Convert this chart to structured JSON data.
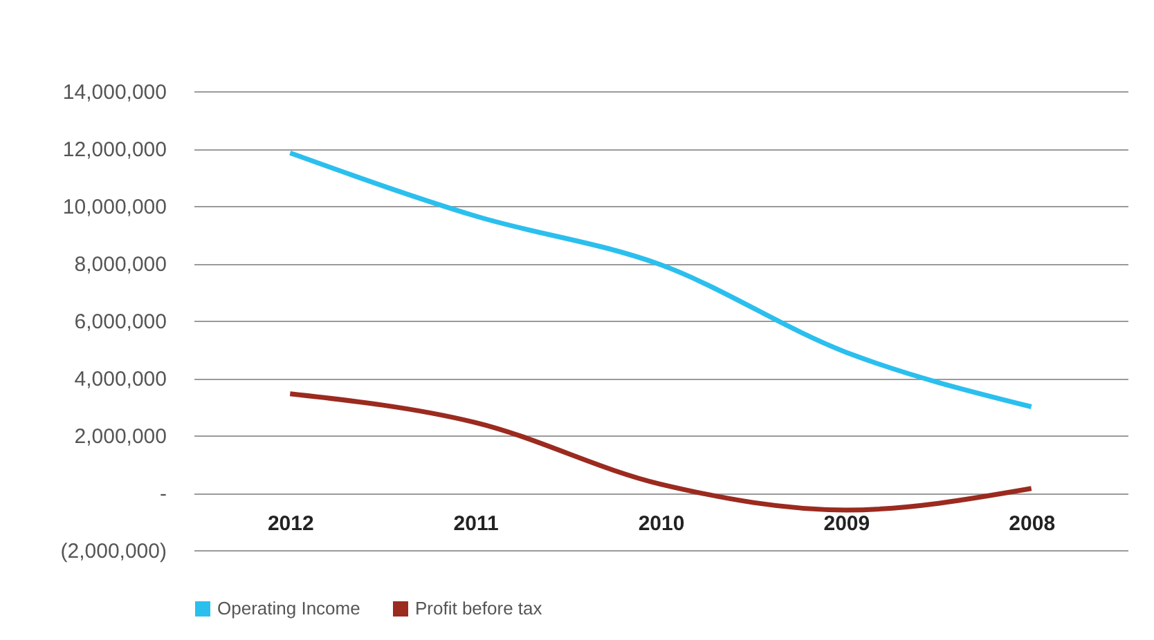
{
  "chart_data": {
    "type": "line",
    "categories": [
      "2012",
      "2011",
      "2010",
      "2009",
      "2008"
    ],
    "series": [
      {
        "name": "Operating Income",
        "color": "#2bbfee",
        "values": [
          11850000,
          9650000,
          7950000,
          4900000,
          3000000
        ]
      },
      {
        "name": "Profit before tax",
        "color": "#9b2a1f",
        "values": [
          3450000,
          2450000,
          300000,
          -600000,
          150000
        ]
      }
    ],
    "ylim": [
      -2000000,
      14000000
    ],
    "yticks": [
      {
        "value": -2000000,
        "label": "(2,000,000)"
      },
      {
        "value": 0,
        "label": "-"
      },
      {
        "value": 2000000,
        "label": "2,000,000"
      },
      {
        "value": 4000000,
        "label": "4,000,000"
      },
      {
        "value": 6000000,
        "label": "6,000,000"
      },
      {
        "value": 8000000,
        "label": "8,000,000"
      },
      {
        "value": 10000000,
        "label": "10,000,000"
      },
      {
        "value": 12000000,
        "label": "12,000,000"
      },
      {
        "value": 14000000,
        "label": "14,000,000"
      }
    ],
    "grid": "y",
    "legend": "bottom",
    "line_style": "solid",
    "marker": "none"
  }
}
